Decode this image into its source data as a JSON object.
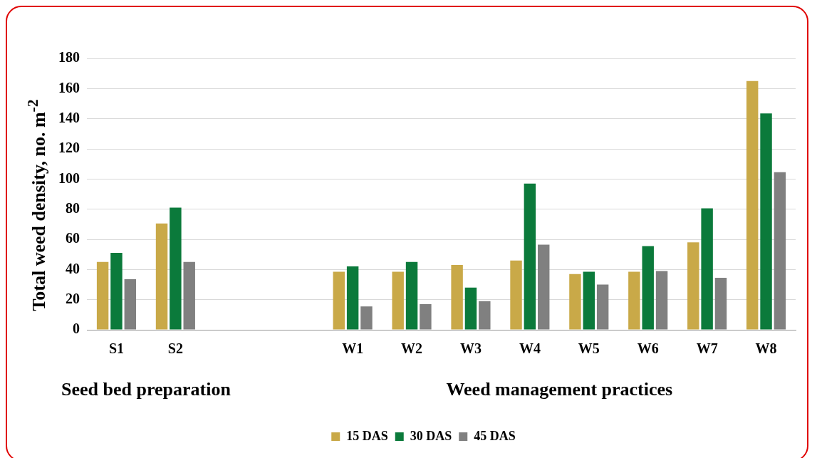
{
  "chart_data": {
    "type": "bar",
    "ylabel": "Total weed density, no. m$^{-2}$",
    "categories": [
      "S1",
      "S2",
      null,
      null,
      "W1",
      "W2",
      "W3",
      "W4",
      "W5",
      "W6",
      "W7",
      "W8"
    ],
    "series": [
      {
        "name": "15 DAS",
        "color": "#c9a948",
        "values": [
          45,
          70.5,
          null,
          null,
          38.5,
          38.5,
          43,
          46,
          37,
          38.5,
          58,
          165
        ]
      },
      {
        "name": "30 DAS",
        "color": "#0b7a3b",
        "values": [
          51,
          81,
          null,
          null,
          42,
          45,
          28,
          97,
          38.5,
          55.5,
          80.5,
          143.5
        ]
      },
      {
        "name": "45 DAS",
        "color": "#808080",
        "values": [
          33.5,
          45,
          null,
          null,
          15.5,
          17,
          19,
          56.5,
          30,
          39,
          34.5,
          104.5
        ]
      }
    ],
    "ylim": [
      0,
      180
    ],
    "yticks": [
      0,
      20,
      40,
      60,
      80,
      100,
      120,
      140,
      160,
      180
    ],
    "grid": "y",
    "legend": "bottom",
    "annotations": [
      "Seed bed preparation",
      "Weed management practices"
    ]
  }
}
